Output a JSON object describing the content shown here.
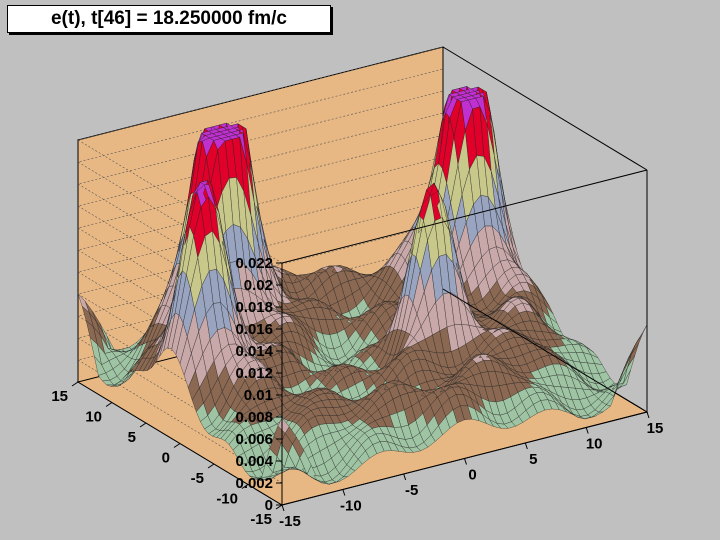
{
  "chart_data": {
    "type": "surface",
    "title": "e(t), t[46] = 18.250000 fm/c",
    "xlabel": "",
    "ylabel": "",
    "zlabel": "",
    "x_range": [
      -15,
      15
    ],
    "y_range": [
      -15,
      15
    ],
    "z_range": [
      0,
      0.022
    ],
    "x_ticks": [
      "-15",
      "-10",
      "-5",
      "0",
      "5",
      "10",
      "15"
    ],
    "y_ticks": [
      "-15",
      "-10",
      "-5",
      "0",
      "5",
      "10",
      "15"
    ],
    "z_ticks": [
      "0",
      "0.002",
      "0.004",
      "0.006",
      "0.008",
      "0.01",
      "0.012",
      "0.014",
      "0.016",
      "0.018",
      "0.02",
      "0.022"
    ],
    "grid": true,
    "peaks": [
      {
        "x": -6,
        "y": 10,
        "z": 0.0205
      },
      {
        "x": 12,
        "y": 6,
        "z": 0.019
      },
      {
        "x": -12,
        "y": 2,
        "z": 0.0128
      },
      {
        "x": 4,
        "y": -3,
        "z": 0.011
      }
    ],
    "colors": {
      "background": "#c0c0c0",
      "box": "#e8b884",
      "low": "#9ec4a4",
      "band_brown": "#8a6852",
      "mid": "#c8a8a8",
      "band_blue": "#98a4c0",
      "band_yellow": "#c8c88a",
      "peak": "#e0002a",
      "tip": "#c030d0"
    }
  }
}
